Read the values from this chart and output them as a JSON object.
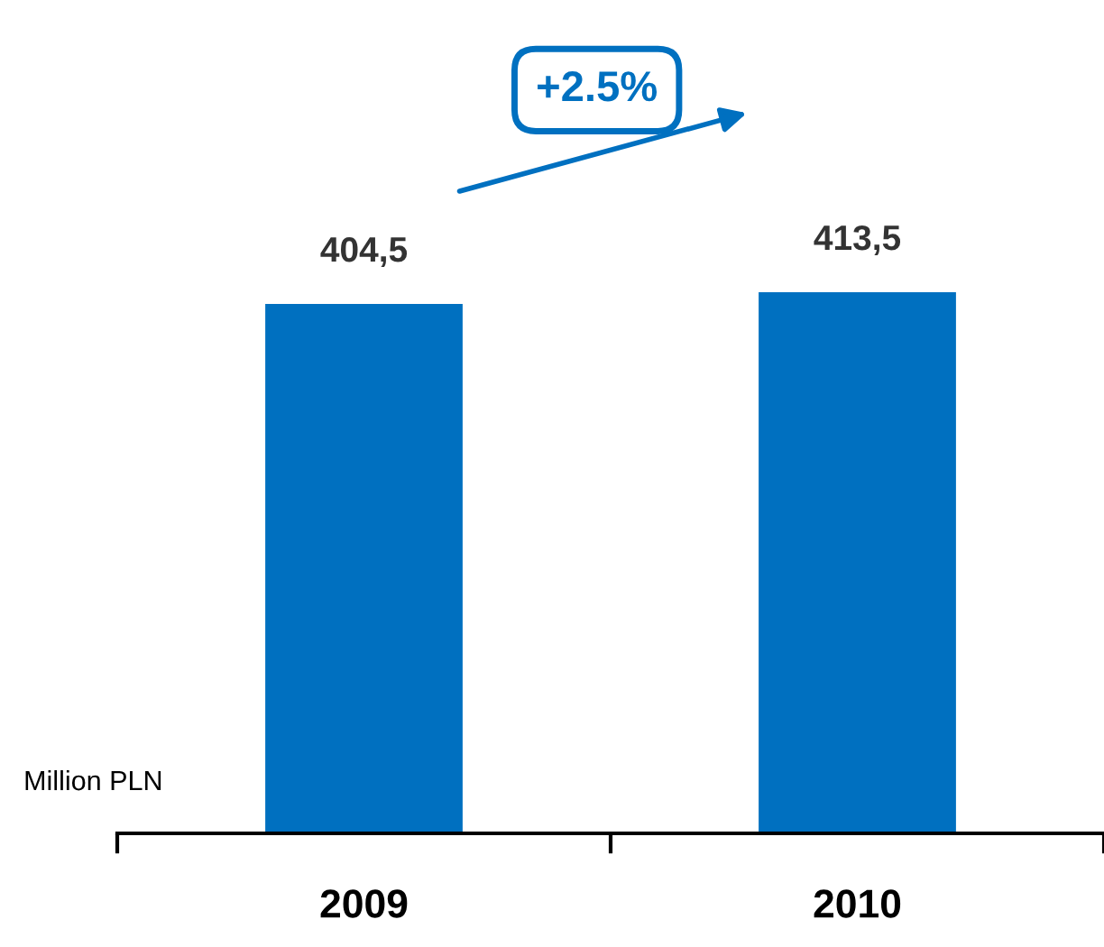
{
  "chart_data": {
    "type": "bar",
    "categories": [
      "2009",
      "2010"
    ],
    "values": [
      404.5,
      413.5
    ],
    "value_labels": [
      "404,5",
      "413,5"
    ],
    "color": "#0070c0",
    "ylabel": "Million PLN",
    "annotations": [
      "+2.5%"
    ],
    "grid": false,
    "legend": false
  }
}
